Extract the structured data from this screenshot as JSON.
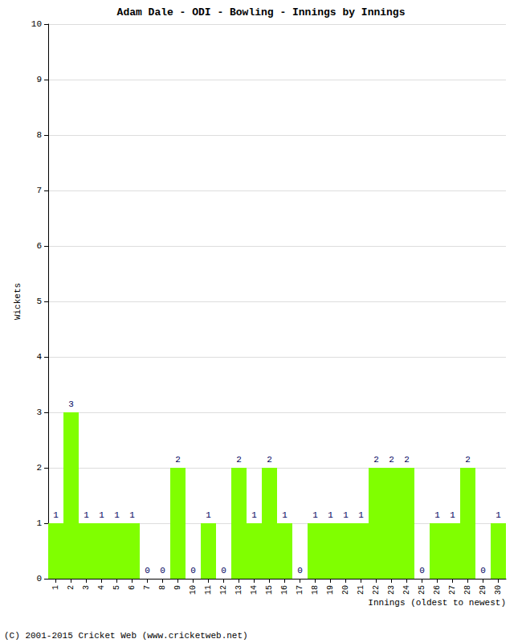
{
  "chart_data": {
    "type": "bar",
    "title": "Adam Dale - ODI - Bowling - Innings by Innings",
    "x_label": "Innings (oldest to newest)",
    "y_label": "Wickets",
    "annotations": [
      "(C) 2001-2015 Cricket Web (www.cricketweb.net)"
    ],
    "categories": [
      "1",
      "2",
      "3",
      "4",
      "5",
      "6",
      "7",
      "8",
      "9",
      "10",
      "11",
      "12",
      "13",
      "14",
      "15",
      "16",
      "17",
      "18",
      "19",
      "20",
      "21",
      "22",
      "23",
      "24",
      "25",
      "26",
      "27",
      "28",
      "29",
      "30"
    ],
    "values": [
      1,
      3,
      1,
      1,
      1,
      1,
      0,
      0,
      2,
      0,
      1,
      0,
      2,
      1,
      2,
      1,
      0,
      1,
      1,
      1,
      1,
      2,
      2,
      2,
      0,
      1,
      1,
      2,
      0,
      1
    ],
    "color": "#80ff00",
    "ylim": [
      0,
      10
    ],
    "yticks": [
      0,
      1,
      2,
      3,
      4,
      5,
      6,
      7,
      8,
      9,
      10
    ],
    "grid": true,
    "data_labels": true
  }
}
